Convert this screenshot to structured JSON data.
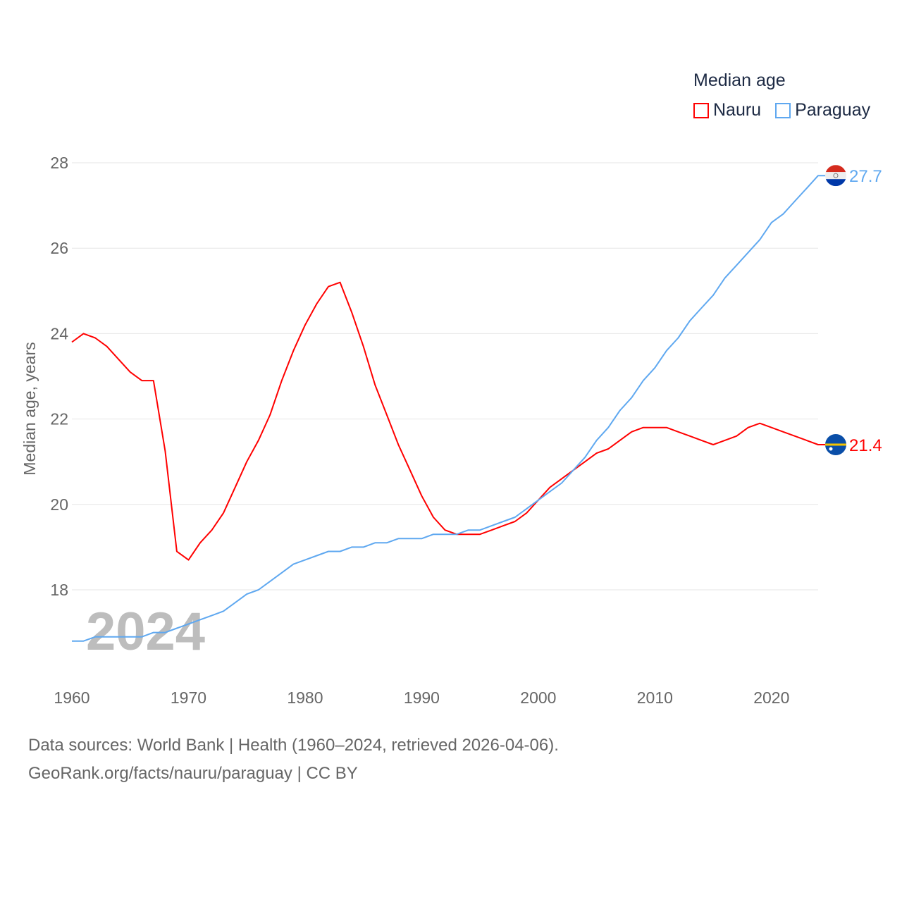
{
  "chart_data": {
    "type": "line",
    "legend_title": "Median age",
    "ylabel": "Median age, years",
    "xlabel": "",
    "year_watermark": "2024",
    "xlim": [
      1960,
      2024
    ],
    "ylim": [
      16.4,
      28.3
    ],
    "x_ticks": [
      "1960",
      "1970",
      "1980",
      "1990",
      "2000",
      "2010",
      "2020"
    ],
    "y_ticks": [
      "18",
      "20",
      "22",
      "24",
      "26",
      "28"
    ],
    "grid": true,
    "legend_position": "top-right",
    "x": [
      1960,
      1961,
      1962,
      1963,
      1964,
      1965,
      1966,
      1967,
      1968,
      1969,
      1970,
      1971,
      1972,
      1973,
      1974,
      1975,
      1976,
      1977,
      1978,
      1979,
      1980,
      1981,
      1982,
      1983,
      1984,
      1985,
      1986,
      1987,
      1988,
      1989,
      1990,
      1991,
      1992,
      1993,
      1994,
      1995,
      1996,
      1997,
      1998,
      1999,
      2000,
      2001,
      2002,
      2003,
      2004,
      2005,
      2006,
      2007,
      2008,
      2009,
      2010,
      2011,
      2012,
      2013,
      2014,
      2015,
      2016,
      2017,
      2018,
      2019,
      2020,
      2021,
      2022,
      2023,
      2024
    ],
    "series": [
      {
        "name": "Nauru",
        "color": "#ff0000",
        "end_label": "21.4",
        "values": [
          23.8,
          24.0,
          23.9,
          23.7,
          23.4,
          23.1,
          22.9,
          22.9,
          21.25,
          18.9,
          18.7,
          19.1,
          19.4,
          19.8,
          20.4,
          21.0,
          21.5,
          22.1,
          22.9,
          23.6,
          24.2,
          24.7,
          25.1,
          25.2,
          24.5,
          23.7,
          22.8,
          22.1,
          21.4,
          20.8,
          20.2,
          19.7,
          19.4,
          19.3,
          19.3,
          19.3,
          19.4,
          19.5,
          19.6,
          19.8,
          20.1,
          20.4,
          20.6,
          20.8,
          21.0,
          21.2,
          21.3,
          21.5,
          21.7,
          21.8,
          21.8,
          21.8,
          21.7,
          21.6,
          21.5,
          21.4,
          21.5,
          21.6,
          21.8,
          21.9,
          21.8,
          21.7,
          21.6,
          21.5,
          21.4
        ]
      },
      {
        "name": "Paraguay",
        "color": "#5fa8f0",
        "end_label": "27.7",
        "values": [
          16.8,
          16.8,
          16.9,
          16.9,
          16.9,
          16.9,
          16.9,
          17.0,
          17.0,
          17.1,
          17.2,
          17.3,
          17.4,
          17.5,
          17.7,
          17.9,
          18.0,
          18.2,
          18.4,
          18.6,
          18.7,
          18.8,
          18.9,
          18.9,
          19.0,
          19.0,
          19.1,
          19.1,
          19.2,
          19.2,
          19.2,
          19.3,
          19.3,
          19.3,
          19.4,
          19.4,
          19.5,
          19.6,
          19.7,
          19.9,
          20.1,
          20.3,
          20.5,
          20.8,
          21.1,
          21.5,
          21.8,
          22.2,
          22.5,
          22.9,
          23.2,
          23.6,
          23.9,
          24.3,
          24.6,
          24.9,
          25.3,
          25.6,
          25.9,
          26.2,
          26.6,
          26.8,
          27.1,
          27.4,
          27.7
        ]
      }
    ]
  },
  "footer": {
    "line1": "Data sources: World Bank | Health (1960–2024, retrieved 2026-04-06).",
    "line2": "GeoRank.org/facts/nauru/paraguay | CC BY"
  }
}
